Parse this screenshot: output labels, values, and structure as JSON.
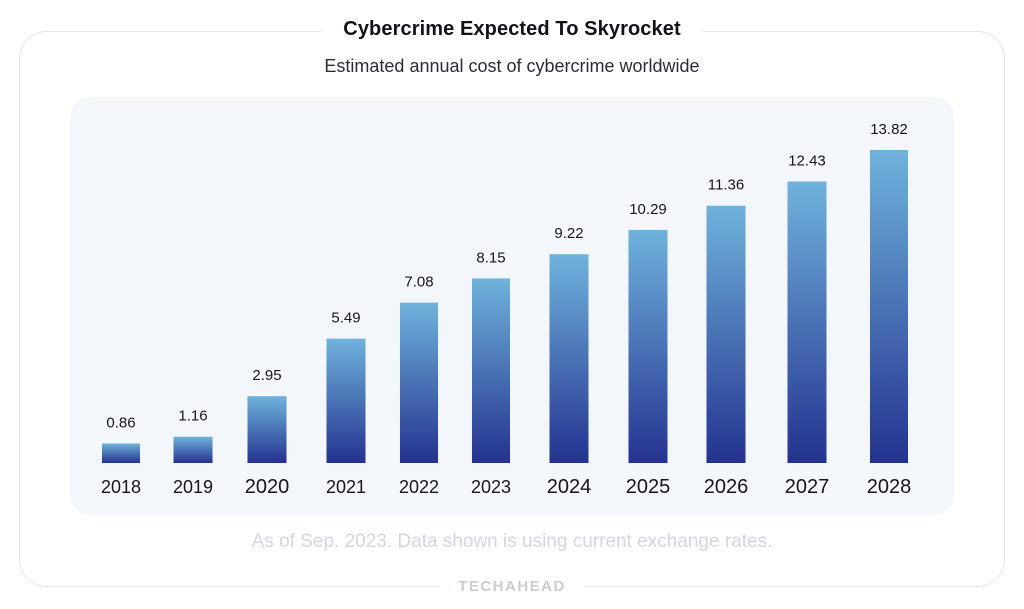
{
  "header": {
    "title": "Cybercrime Expected To Skyrocket",
    "subtitle": "Estimated annual cost of cybercrime worldwide"
  },
  "footer": {
    "note": "As of Sep. 2023. Data shown is using current exchange rates.",
    "brand": "TECHAHEAD"
  },
  "colors": {
    "bar_top": "#6fb3dc",
    "bar_bottom": "#24328f",
    "plot_background": "#f3f6fb"
  },
  "chart_data": {
    "type": "bar",
    "title": "Cybercrime Expected To Skyrocket",
    "subtitle": "Estimated annual cost of cybercrime worldwide",
    "categories": [
      "2018",
      "2019",
      "2020",
      "2021",
      "2022",
      "2023",
      "2024",
      "2025",
      "2026",
      "2027",
      "2028"
    ],
    "values": [
      0.86,
      1.16,
      2.95,
      5.49,
      7.08,
      8.15,
      9.22,
      10.29,
      11.36,
      12.43,
      13.82
    ],
    "value_labels": [
      "0.86",
      "1.16",
      "2.95",
      "5.49",
      "7.08",
      "8.15",
      "9.22",
      "10.29",
      "11.36",
      "12.43",
      "13.82"
    ],
    "xlabel": "",
    "ylabel": "",
    "ylim": [
      0,
      13.82
    ],
    "grid": false,
    "legend": "none"
  }
}
